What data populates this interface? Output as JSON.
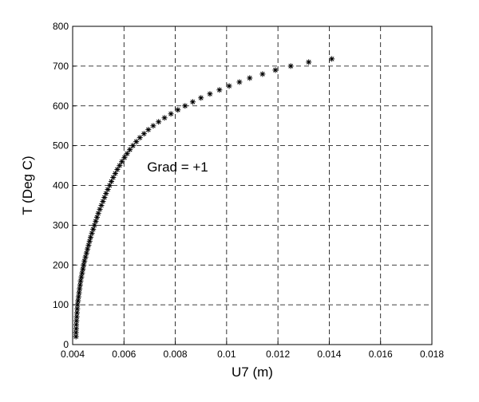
{
  "chart_data": {
    "type": "scatter",
    "title": "",
    "xlabel": "U7 (m)",
    "ylabel": "T (Deg C)",
    "xlim": [
      0.004,
      0.018
    ],
    "ylim": [
      0,
      800
    ],
    "xticks": [
      "0.004",
      "0.006",
      "0.008",
      "0.01",
      "0.012",
      "0.014",
      "0.016",
      "0.018"
    ],
    "yticks": [
      "0",
      "100",
      "200",
      "300",
      "400",
      "500",
      "600",
      "700",
      "800"
    ],
    "grid": true,
    "marker": "asterisk",
    "annotations": [
      {
        "text": "Grad = +1",
        "x": 0.0069,
        "y": 435
      }
    ],
    "series": [
      {
        "points": [
          [
            0.00413,
            20
          ],
          [
            0.00413,
            30
          ],
          [
            0.00414,
            40
          ],
          [
            0.00414,
            50
          ],
          [
            0.00415,
            60
          ],
          [
            0.00416,
            70
          ],
          [
            0.00417,
            80
          ],
          [
            0.00418,
            90
          ],
          [
            0.00419,
            100
          ],
          [
            0.00421,
            110
          ],
          [
            0.00423,
            120
          ],
          [
            0.00425,
            130
          ],
          [
            0.00427,
            140
          ],
          [
            0.00429,
            150
          ],
          [
            0.00431,
            160
          ],
          [
            0.00434,
            170
          ],
          [
            0.00437,
            180
          ],
          [
            0.0044,
            190
          ],
          [
            0.00443,
            200
          ],
          [
            0.00446,
            210
          ],
          [
            0.0045,
            220
          ],
          [
            0.00454,
            230
          ],
          [
            0.00458,
            240
          ],
          [
            0.00462,
            250
          ],
          [
            0.00466,
            260
          ],
          [
            0.0047,
            270
          ],
          [
            0.00475,
            280
          ],
          [
            0.0048,
            290
          ],
          [
            0.00485,
            300
          ],
          [
            0.0049,
            310
          ],
          [
            0.00495,
            320
          ],
          [
            0.005,
            330
          ],
          [
            0.00506,
            340
          ],
          [
            0.00512,
            350
          ],
          [
            0.00518,
            360
          ],
          [
            0.00524,
            370
          ],
          [
            0.0053,
            380
          ],
          [
            0.00537,
            390
          ],
          [
            0.00544,
            400
          ],
          [
            0.00551,
            410
          ],
          [
            0.00558,
            420
          ],
          [
            0.00566,
            430
          ],
          [
            0.00574,
            440
          ],
          [
            0.00583,
            450
          ],
          [
            0.00592,
            460
          ],
          [
            0.00602,
            470
          ],
          [
            0.00612,
            480
          ],
          [
            0.00623,
            490
          ],
          [
            0.00635,
            500
          ],
          [
            0.00648,
            510
          ],
          [
            0.00662,
            520
          ],
          [
            0.00678,
            530
          ],
          [
            0.00695,
            540
          ],
          [
            0.00714,
            550
          ],
          [
            0.00735,
            560
          ],
          [
            0.00758,
            570
          ],
          [
            0.00783,
            580
          ],
          [
            0.0081,
            590
          ],
          [
            0.00838,
            600
          ],
          [
            0.00868,
            610
          ],
          [
            0.009,
            620
          ],
          [
            0.00935,
            630
          ],
          [
            0.00972,
            640
          ],
          [
            0.0101,
            650
          ],
          [
            0.0105,
            660
          ],
          [
            0.0109,
            670
          ],
          [
            0.0114,
            680
          ],
          [
            0.0119,
            690
          ],
          [
            0.0125,
            700
          ],
          [
            0.0132,
            710
          ],
          [
            0.0141,
            718
          ]
        ]
      }
    ]
  }
}
